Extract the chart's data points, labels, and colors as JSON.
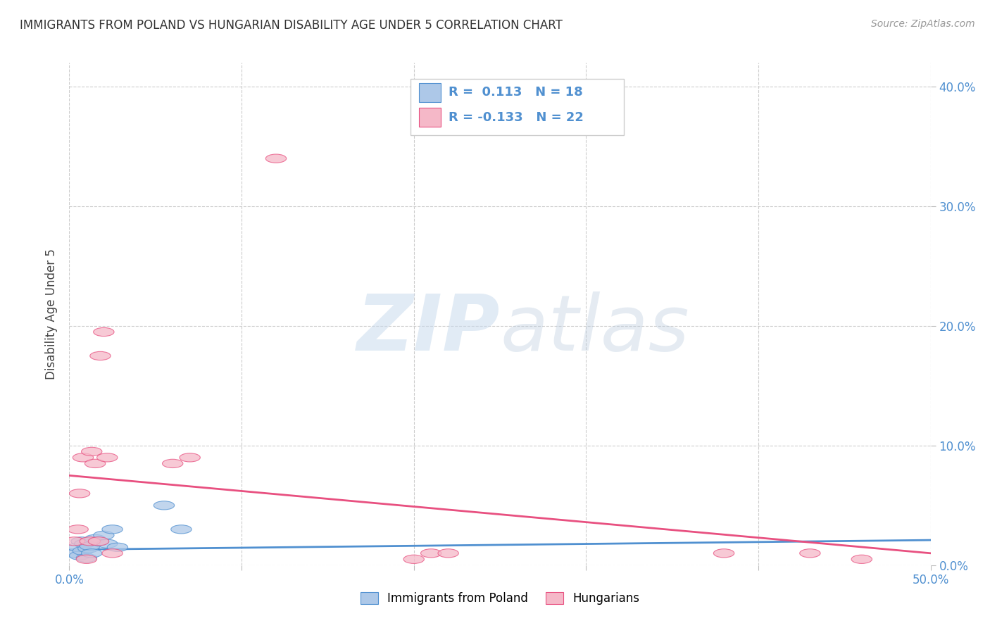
{
  "title": "IMMIGRANTS FROM POLAND VS HUNGARIAN DISABILITY AGE UNDER 5 CORRELATION CHART",
  "source": "Source: ZipAtlas.com",
  "ylabel": "Disability Age Under 5",
  "xlim": [
    0.0,
    0.5
  ],
  "ylim": [
    0.0,
    0.42
  ],
  "yticks": [
    0.0,
    0.1,
    0.2,
    0.3,
    0.4
  ],
  "xticks": [
    0.0,
    0.1,
    0.2,
    0.3,
    0.4,
    0.5
  ],
  "poland_color": "#adc8e8",
  "hungarian_color": "#f5b8c8",
  "poland_line_color": "#5090d0",
  "hungarian_line_color": "#e85080",
  "background_color": "#ffffff",
  "poland_points_x": [
    0.003,
    0.005,
    0.006,
    0.007,
    0.008,
    0.009,
    0.01,
    0.011,
    0.012,
    0.013,
    0.015,
    0.017,
    0.02,
    0.022,
    0.025,
    0.028,
    0.055,
    0.065
  ],
  "poland_points_y": [
    0.01,
    0.015,
    0.008,
    0.02,
    0.012,
    0.018,
    0.006,
    0.014,
    0.016,
    0.01,
    0.022,
    0.02,
    0.025,
    0.018,
    0.03,
    0.015,
    0.05,
    0.03
  ],
  "hungarian_points_x": [
    0.003,
    0.005,
    0.006,
    0.008,
    0.01,
    0.012,
    0.013,
    0.015,
    0.017,
    0.018,
    0.02,
    0.022,
    0.025,
    0.06,
    0.07,
    0.12,
    0.2,
    0.21,
    0.22,
    0.38,
    0.43,
    0.46
  ],
  "hungarian_points_y": [
    0.02,
    0.03,
    0.06,
    0.09,
    0.005,
    0.02,
    0.095,
    0.085,
    0.02,
    0.175,
    0.195,
    0.09,
    0.01,
    0.085,
    0.09,
    0.34,
    0.005,
    0.01,
    0.01,
    0.01,
    0.01,
    0.005
  ],
  "poland_trend_x": [
    0.0,
    0.5
  ],
  "poland_trend_y": [
    0.013,
    0.021
  ],
  "hungarian_trend_x": [
    0.0,
    0.5
  ],
  "hungarian_trend_y": [
    0.075,
    0.01
  ]
}
